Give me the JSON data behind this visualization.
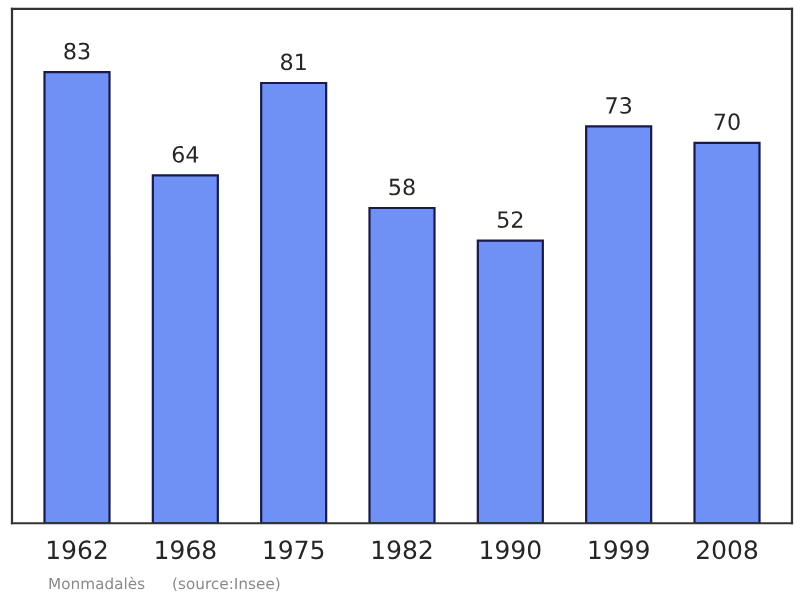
{
  "chart_data": {
    "type": "bar",
    "categories": [
      "1962",
      "1968",
      "1975",
      "1982",
      "1990",
      "1999",
      "2008"
    ],
    "values": [
      83,
      64,
      81,
      58,
      52,
      73,
      70
    ],
    "color": "#6f91f5",
    "data_labels": true,
    "grid": false,
    "legend": false,
    "annotations": [
      "Monmadalès",
      "(source:Insee)"
    ]
  }
}
